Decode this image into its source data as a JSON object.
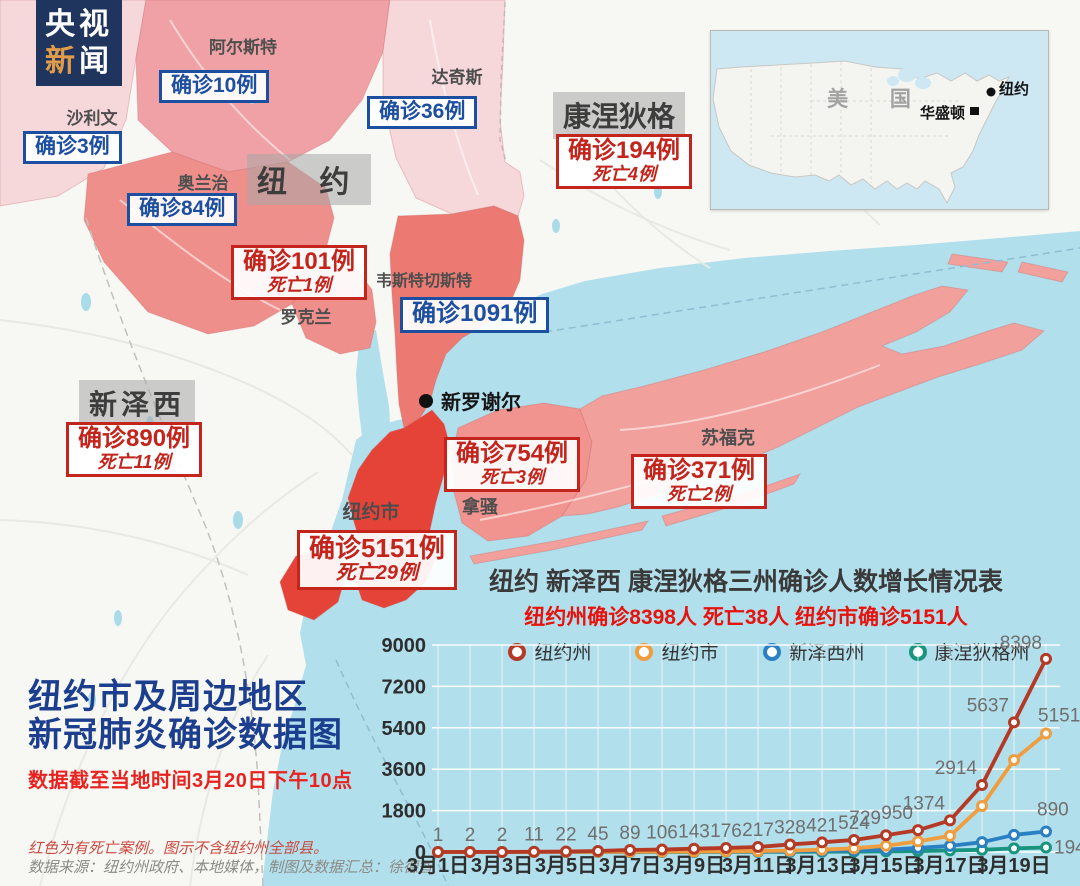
{
  "logo": {
    "line1": "央视",
    "line2_highlight": "新",
    "line2_rest": "闻"
  },
  "map": {
    "state_tags": {
      "new_york": "纽 约",
      "connecticut": "康涅狄格",
      "new_jersey": "新泽西"
    },
    "labels": {
      "ulster": {
        "name": "阿尔斯特",
        "cases": "确诊10例"
      },
      "dutchess": {
        "name": "达奇斯",
        "cases": "确诊36例"
      },
      "sullivan": {
        "name": "沙利文",
        "cases": "确诊3例"
      },
      "orange": {
        "name": "奥兰治",
        "cases": "确诊84例"
      },
      "rockland": {
        "name": "罗克兰",
        "cases": "确诊101例",
        "deaths": "死亡1例"
      },
      "westchester": {
        "name": "韦斯特切斯特",
        "cases": "确诊1091例"
      },
      "connecticut": {
        "cases": "确诊194例",
        "deaths": "死亡4例"
      },
      "new_jersey": {
        "cases": "确诊890例",
        "deaths": "死亡11例"
      },
      "nassau": {
        "name": "拿骚",
        "cases": "确诊754例",
        "deaths": "死亡3例"
      },
      "suffolk": {
        "name": "苏福克",
        "cases": "确诊371例",
        "deaths": "死亡2例"
      },
      "nyc": {
        "name": "纽约市",
        "cases": "确诊5151例",
        "deaths": "死亡29例"
      },
      "new_rochelle": {
        "name": "新罗谢尔"
      }
    }
  },
  "inset": {
    "country": "美 国",
    "new_york": "纽约",
    "washington": "华盛顿"
  },
  "title_block": {
    "line1": "纽约市及周边地区",
    "line2": "新冠肺炎确诊数据图",
    "note": "数据截至当地时间3月20日下午10点"
  },
  "footnotes": {
    "line1": "红色为有死亡案例。图示不含纽约州全部县。",
    "line2": "数据来源：纽约州政府、本地媒体，制图及数据汇总：徐德智"
  },
  "palette": {
    "water": "#b2dfec",
    "land": "#f7f7f4",
    "nyc_red": "#e64338",
    "county_salmon": "#ef8f8b",
    "blue_box": "#1d4fa1",
    "red_box": "#c3241c"
  },
  "chart_data": {
    "type": "line",
    "title": "纽约 新泽西 康涅狄格三州确诊人数增长情况表",
    "subtitle": "纽约州确诊8398人 死亡38人 纽约市确诊5151人",
    "x": [
      "3月1日",
      "3月2日",
      "3月3日",
      "3月4日",
      "3月5日",
      "3月6日",
      "3月7日",
      "3月8日",
      "3月9日",
      "3月10日",
      "3月11日",
      "3月12日",
      "3月13日",
      "3月14日",
      "3月15日",
      "3月16日",
      "3月17日",
      "3月18日",
      "3月19日",
      "3月20日"
    ],
    "x_tick_every": 2,
    "ylim": [
      0,
      9000
    ],
    "yticks": [
      0,
      1800,
      3600,
      5400,
      7200,
      9000
    ],
    "grid": true,
    "legend_position": "top",
    "series": [
      {
        "name": "纽约州",
        "color": "#b43a26",
        "values": [
          1,
          2,
          2,
          11,
          22,
          45,
          89,
          106,
          143,
          176,
          217,
          328,
          421,
          524,
          729,
          950,
          1374,
          2914,
          5637,
          8398
        ],
        "show_point_labels": true
      },
      {
        "name": "纽约市",
        "color": "#ef9d3e",
        "values": [
          0,
          0,
          1,
          1,
          4,
          8,
          12,
          14,
          20,
          25,
          40,
          60,
          100,
          160,
          270,
          460,
          700,
          2000,
          4000,
          5151
        ],
        "end_label": "5151"
      },
      {
        "name": "新泽西州",
        "color": "#2a80c2",
        "values": [
          0,
          0,
          0,
          1,
          2,
          3,
          4,
          6,
          11,
          15,
          23,
          29,
          50,
          69,
          98,
          178,
          267,
          427,
          742,
          890
        ],
        "end_label": "890"
      },
      {
        "name": "康涅狄格州",
        "color": "#18947f",
        "values": [
          0,
          0,
          0,
          0,
          0,
          1,
          1,
          1,
          2,
          3,
          4,
          6,
          11,
          20,
          26,
          41,
          68,
          96,
          159,
          194
        ],
        "end_label": "194"
      }
    ]
  }
}
